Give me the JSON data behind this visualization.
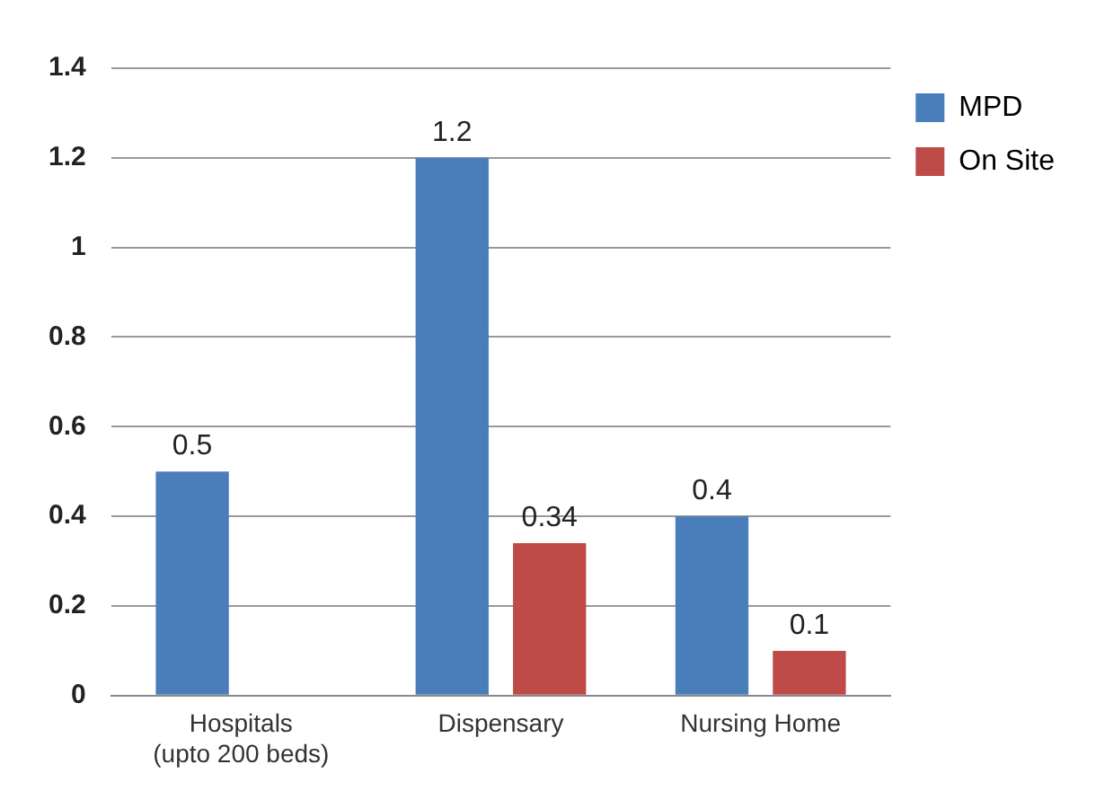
{
  "chart_data": {
    "type": "bar",
    "categories": [
      "Hospitals\n(upto 200 beds)",
      "Dispensary",
      "Nursing Home"
    ],
    "series": [
      {
        "name": "MPD",
        "color": "#4a7ebb",
        "values": [
          0.5,
          1.2,
          0.4
        ]
      },
      {
        "name": "On Site",
        "color": "#be4b48",
        "values": [
          null,
          0.34,
          0.1
        ]
      }
    ],
    "ylim": [
      0,
      1.4
    ],
    "yticks": [
      0,
      0.2,
      0.4,
      0.6,
      0.8,
      1,
      1.2,
      1.4
    ],
    "grid": "y",
    "legend": "top right",
    "data_labels": true
  }
}
